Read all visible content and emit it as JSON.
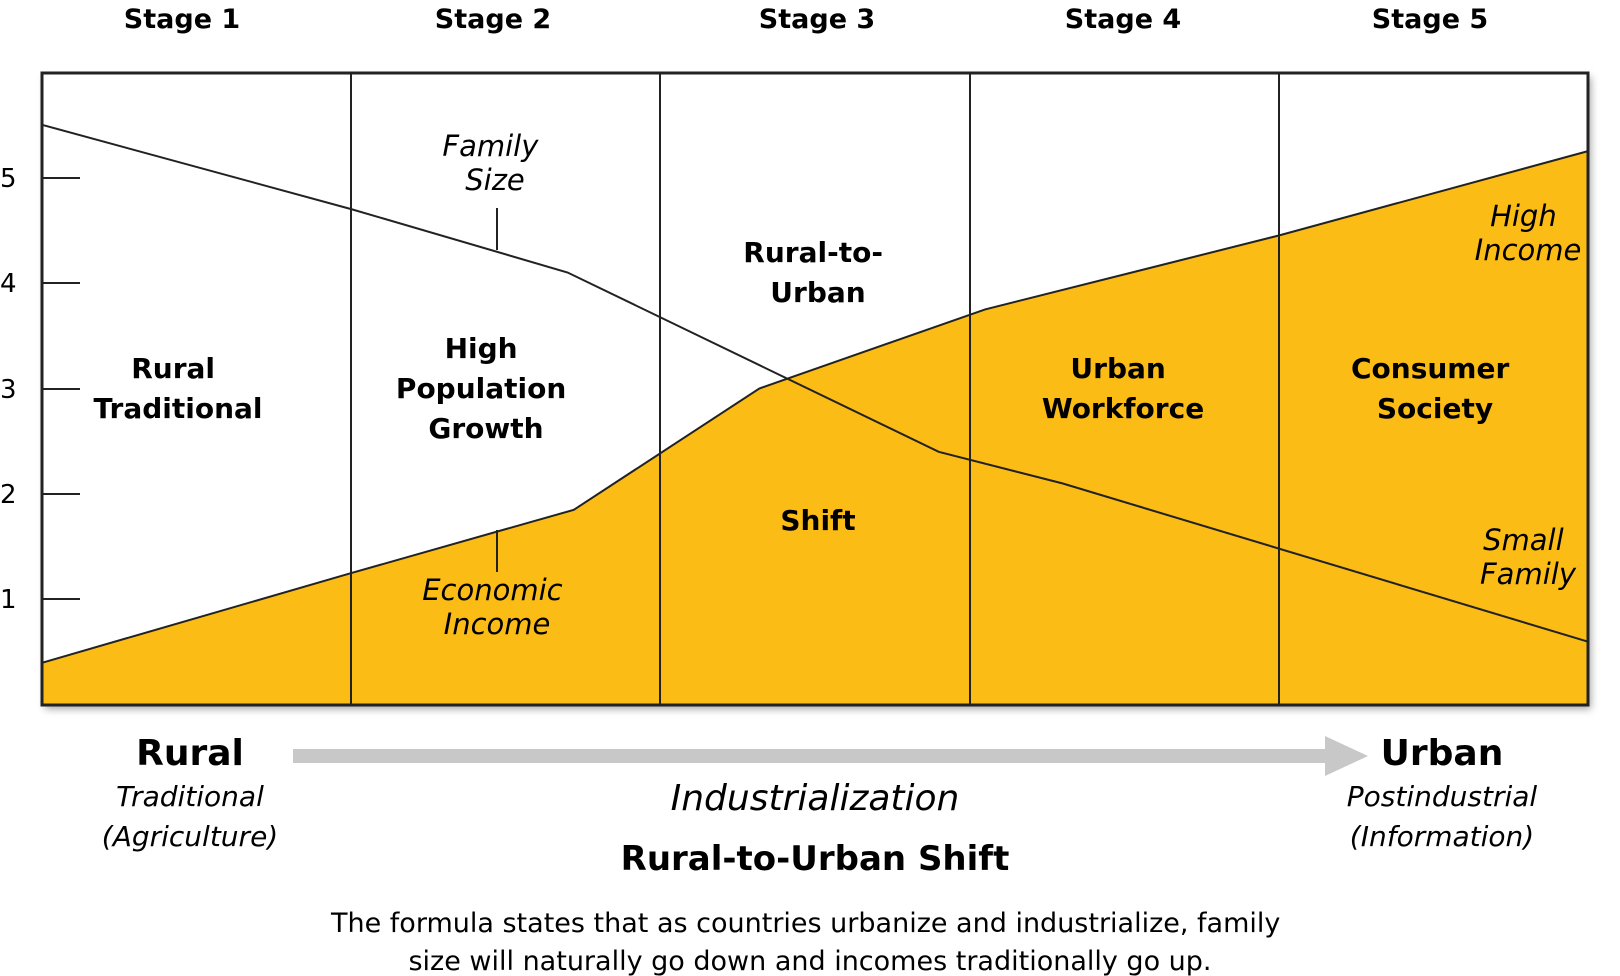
{
  "stages": [
    "Stage 1",
    "Stage 2",
    "Stage 3",
    "Stage 4",
    "Stage 5"
  ],
  "y_ticks": [
    "1",
    "2",
    "3",
    "4",
    "5"
  ],
  "regions": {
    "stage1": [
      "Rural",
      "Traditional"
    ],
    "stage2": [
      "High",
      "Population",
      "Growth"
    ],
    "stage3_top": [
      "Rural-to-",
      "Urban"
    ],
    "stage3_bottom": [
      "Shift"
    ],
    "stage4": [
      "Urban",
      "Workforce"
    ],
    "stage5": [
      "Consumer",
      "Society"
    ]
  },
  "curve_labels": {
    "family_size": [
      "Family",
      "Size"
    ],
    "economic_income": [
      "Economic",
      "Income"
    ],
    "high_income": [
      "High",
      "Income"
    ],
    "small_family": [
      "Small",
      "Family"
    ]
  },
  "rural": {
    "title": "Rural",
    "sub1": "Traditional",
    "sub2": "(Agriculture)"
  },
  "urban": {
    "title": "Urban",
    "sub1": "Postindustrial",
    "sub2": "(Information)"
  },
  "center": {
    "italic": "Industrialization",
    "bold": "Rural-to-Urban Shift"
  },
  "caption": [
    "The formula states that as countries urbanize and industrialize, family",
    "size will naturally go down and incomes traditionally go up."
  ],
  "colors": {
    "income_fill": "#fbbc16",
    "line": "#222222",
    "arrow": "#c8c8c8"
  },
  "chart_data": {
    "type": "line",
    "x_categories": [
      "Stage 1",
      "Stage 2",
      "Stage 3",
      "Stage 4",
      "Stage 5"
    ],
    "ylim": [
      0,
      6
    ],
    "series": [
      {
        "name": "Family Size",
        "x": [
          0,
          1,
          1.7,
          2.9,
          3.3,
          5
        ],
        "y": [
          5.5,
          4.7,
          4.1,
          2.4,
          2.1,
          0.6
        ]
      },
      {
        "name": "Economic Income",
        "x": [
          0,
          1,
          1.72,
          2.32,
          3.05,
          4,
          5
        ],
        "y": [
          0.4,
          1.25,
          1.85,
          3.0,
          3.75,
          4.45,
          5.25
        ]
      }
    ]
  }
}
